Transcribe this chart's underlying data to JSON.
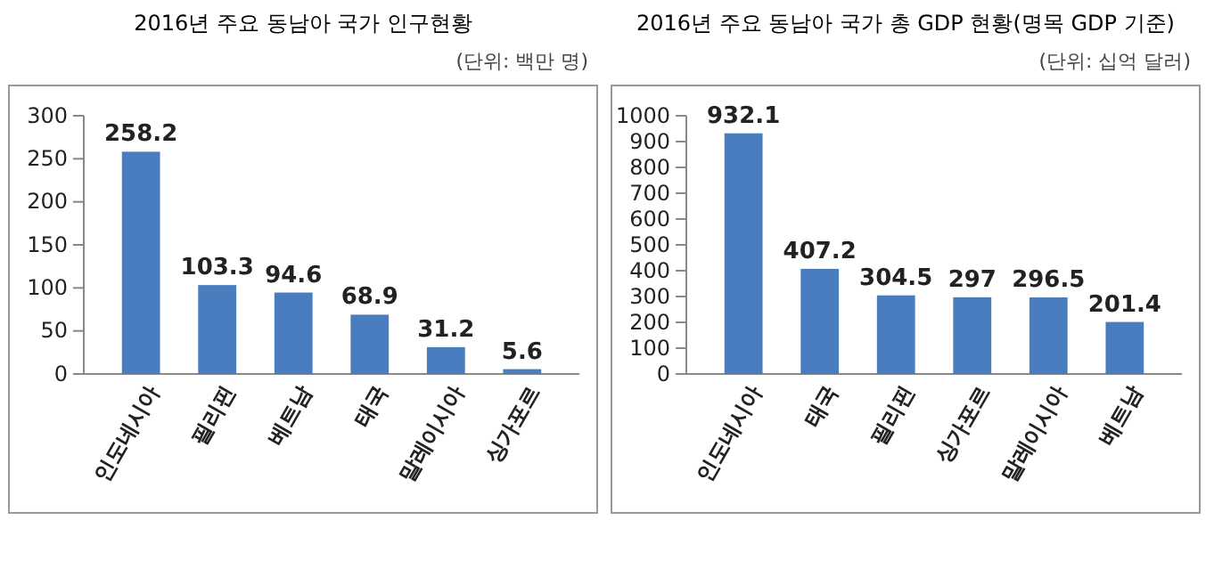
{
  "chart_data": [
    {
      "type": "bar",
      "title": "2016년 주요 동남아 국가 인구현황",
      "subtitle": "(단위: 백만 명)",
      "categories": [
        "인도네시아",
        "필리핀",
        "베트남",
        "태국",
        "말레이시아",
        "싱가포르"
      ],
      "values": [
        258.2,
        103.3,
        94.6,
        68.9,
        31.2,
        5.6
      ],
      "color": "#4a7dc0",
      "ylim": [
        0,
        300
      ],
      "yticks": [
        0,
        50,
        100,
        150,
        200,
        250,
        300
      ],
      "data_labels": true
    },
    {
      "type": "bar",
      "title": "2016년 주요 동남아 국가 총 GDP 현황(명목 GDP 기준)",
      "subtitle": "(단위: 십억 달러)",
      "categories": [
        "인도네시아",
        "태국",
        "필리핀",
        "싱가포르",
        "말레이시아",
        "베트남"
      ],
      "values": [
        932.1,
        407.2,
        304.5,
        297,
        296.5,
        201.4
      ],
      "color": "#4a7dc0",
      "ylim": [
        0,
        1000
      ],
      "yticks": [
        0,
        100,
        200,
        300,
        400,
        500,
        600,
        700,
        800,
        900,
        1000
      ],
      "data_labels": true
    }
  ]
}
